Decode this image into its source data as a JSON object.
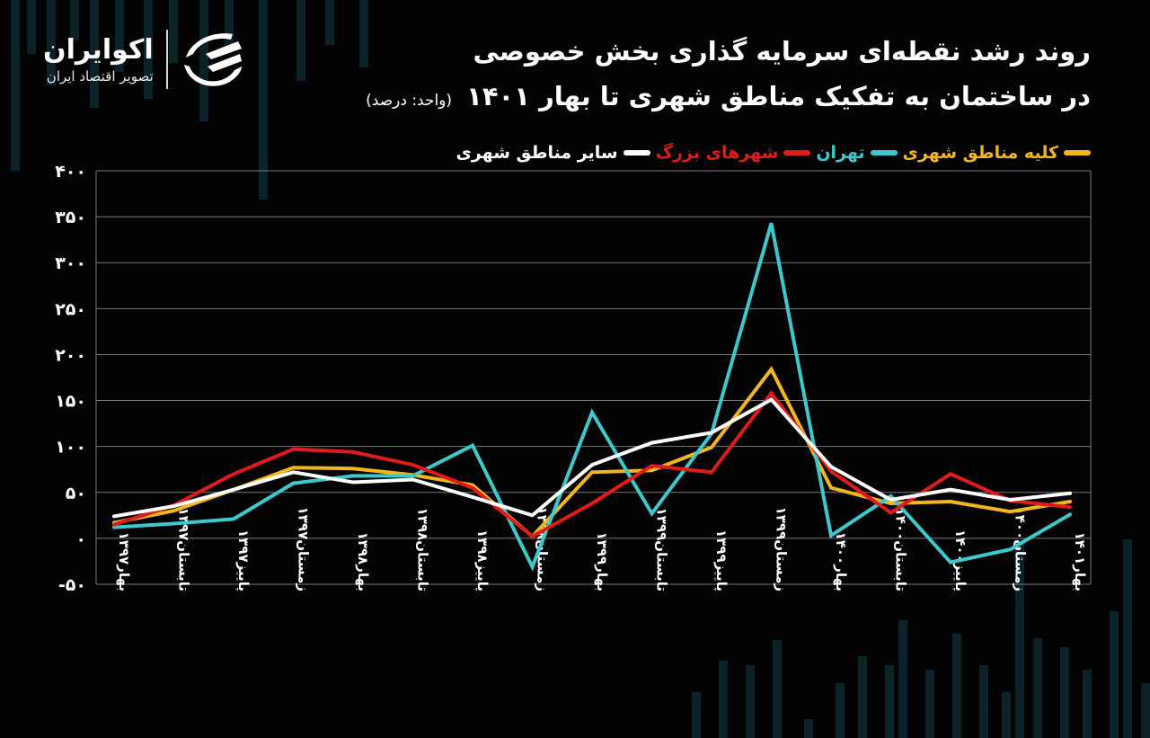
{
  "brand": {
    "name": "اکوایران",
    "tagline": "تصویر اقتصاد ایران"
  },
  "header": {
    "title_line1": "روند رشد نقطه‌ای سرمایه گذاری بخش خصوصی",
    "title_line2": "در ساختمان به تفکیک مناطق شهری تا بهار ۱۴۰۱",
    "unit": "(واحد: درصد)"
  },
  "colors": {
    "background": "#030303",
    "grid": "#7a7a7a",
    "decor_bars": "#0b2229",
    "all_urban": "#F2B71E",
    "tehran": "#3FC8CC",
    "big_cities": "#E01B1B",
    "other_urban": "#FFFFFF"
  },
  "legend": [
    {
      "label": "کلیه مناطق شهری",
      "color": "#F2B71E"
    },
    {
      "label": "تهران",
      "color": "#3FC8CC"
    },
    {
      "label": "شهرهای بزرگ",
      "color": "#E01B1B"
    },
    {
      "label": "سایر مناطق شهری",
      "color": "#FFFFFF"
    }
  ],
  "chart_data": {
    "type": "line",
    "title": "روند رشد نقطه‌ای سرمایه گذاری بخش خصوصی در ساختمان به تفکیک مناطق شهری تا بهار ۱۴۰۱",
    "subtitle": "(واحد: درصد)",
    "xlabel": "",
    "ylabel": "درصد",
    "ylim": [
      -50,
      400
    ],
    "yticks": [
      -50,
      0,
      50,
      100,
      150,
      200,
      250,
      300,
      350,
      400
    ],
    "ytick_labels": [
      "-۵۰",
      "۰",
      "۵۰",
      "۱۰۰",
      "۱۵۰",
      "۲۰۰",
      "۲۵۰",
      "۳۰۰",
      "۳۵۰",
      "۴۰۰"
    ],
    "grid": true,
    "legend_position": "top",
    "categories": [
      "بهار۱۳۹۷",
      "تابستان۱۳۹۷",
      "پاییز۱۳۹۷",
      "زمستان۱۳۹۷",
      "بهار۱۳۹۸",
      "تابستان۱۳۹۸",
      "پاییز۱۳۹۸",
      "زمستان۱۳۹۸",
      "بهار۱۳۹۹",
      "تابستان۱۳۹۹",
      "پاییز۱۳۹۹",
      "زمستان۱۳۹۹",
      "بهار۱۴۰۰",
      "تابستان۱۴۰۰",
      "پاییز۱۴۰۰",
      "زمستان۱۴۰۰",
      "بهار۱۴۰۱"
    ],
    "series": [
      {
        "name": "کلیه مناطق شهری",
        "color": "#F2B71E",
        "values": [
          17,
          30,
          53,
          77,
          76,
          69,
          58,
          2,
          72,
          74,
          99,
          184,
          55,
          38,
          40,
          29,
          40
        ]
      },
      {
        "name": "تهران",
        "color": "#3FC8CC",
        "values": [
          12,
          16,
          21,
          60,
          68,
          68,
          101,
          -31,
          137,
          27,
          114,
          343,
          3,
          46,
          -26,
          -12,
          26
        ]
      },
      {
        "name": "شهرهای بزرگ",
        "color": "#E01B1B",
        "values": [
          15,
          36,
          70,
          97,
          94,
          80,
          55,
          2,
          38,
          79,
          72,
          158,
          73,
          28,
          70,
          41,
          34
        ]
      },
      {
        "name": "سایر مناطق شهری",
        "color": "#FFFFFF",
        "values": [
          24,
          35,
          53,
          72,
          61,
          64,
          45,
          25,
          80,
          104,
          115,
          151,
          78,
          42,
          53,
          42,
          49
        ]
      }
    ]
  }
}
